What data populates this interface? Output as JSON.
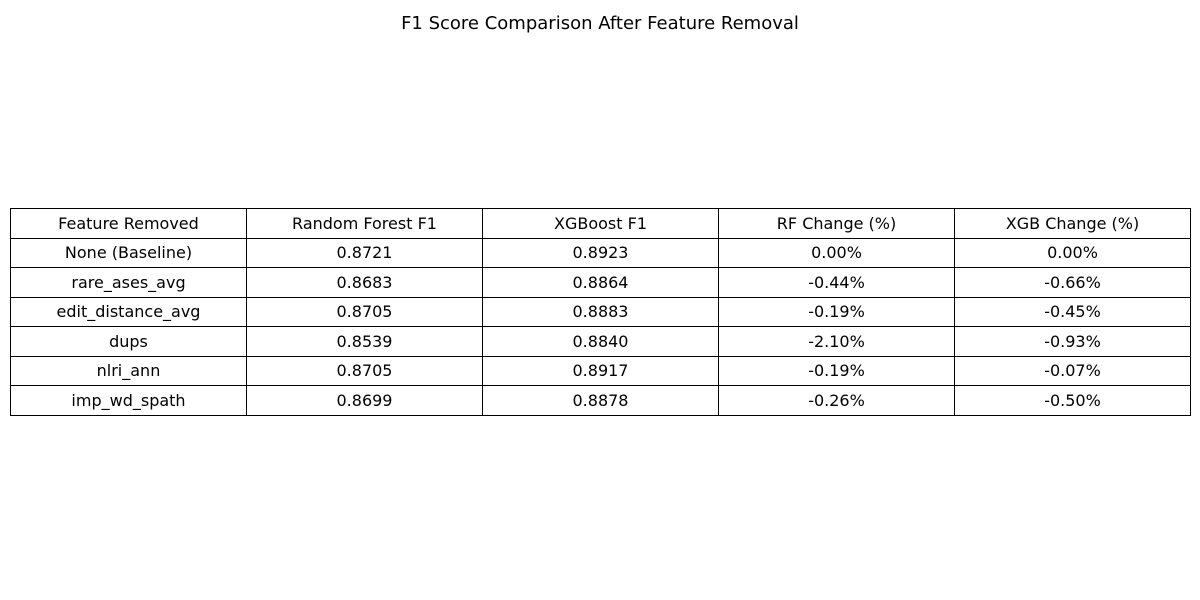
{
  "chart_data": {
    "type": "table",
    "title": "F1 Score Comparison After Feature Removal",
    "columns": [
      "Feature Removed",
      "Random Forest F1",
      "XGBoost F1",
      "RF Change (%)",
      "XGB Change (%)"
    ],
    "rows": [
      [
        "None (Baseline)",
        "0.8721",
        "0.8923",
        "0.00%",
        "0.00%"
      ],
      [
        "rare_ases_avg",
        "0.8683",
        "0.8864",
        "-0.44%",
        "-0.66%"
      ],
      [
        "edit_distance_avg",
        "0.8705",
        "0.8883",
        "-0.19%",
        "-0.45%"
      ],
      [
        "dups",
        "0.8539",
        "0.8840",
        "-2.10%",
        "-0.93%"
      ],
      [
        "nlri_ann",
        "0.8705",
        "0.8917",
        "-0.19%",
        "-0.07%"
      ],
      [
        "imp_wd_spath",
        "0.8699",
        "0.8878",
        "-0.26%",
        "-0.50%"
      ]
    ]
  }
}
